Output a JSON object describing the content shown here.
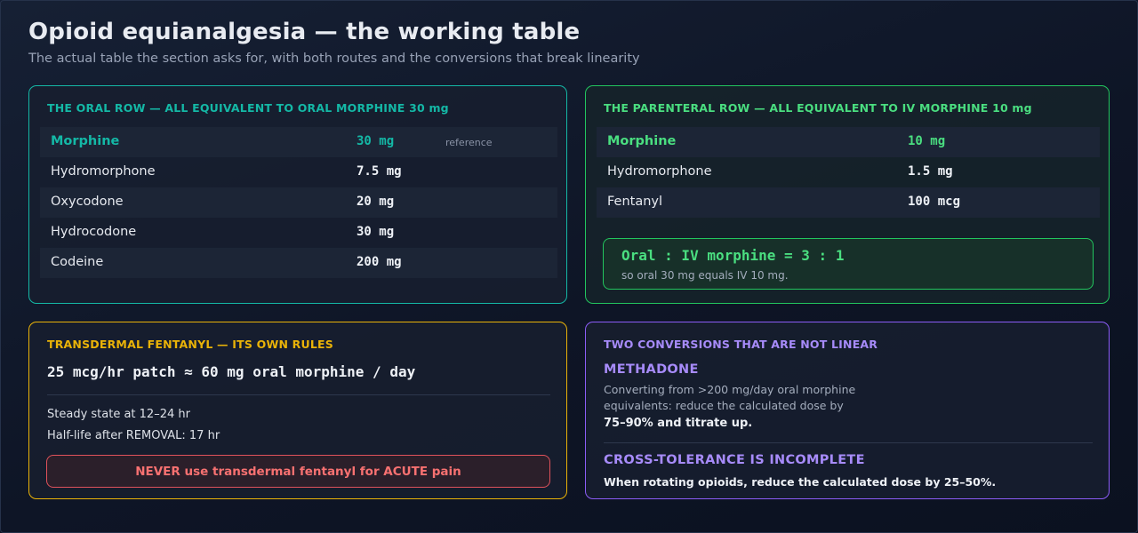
{
  "page": {
    "title": "Opioid equianalgesia — the working table",
    "subtitle": "The actual table the section asks for, with both routes and the conversions that break linearity"
  },
  "colors": {
    "oral_accent": "#14b8a6",
    "parenteral_accent": "#22c55e",
    "fentanyl_accent": "#eab308",
    "warning": "#ef4444",
    "nonlinear_accent": "#8b5cf6"
  },
  "oral": {
    "heading": "THE ORAL ROW — ALL EQUIVALENT TO ORAL MORPHINE 30 mg",
    "rows": [
      {
        "drug": "Morphine",
        "dose": "30 mg",
        "note": "reference"
      },
      {
        "drug": "Hydromorphone",
        "dose": "7.5 mg"
      },
      {
        "drug": "Oxycodone",
        "dose": "20 mg"
      },
      {
        "drug": "Hydrocodone",
        "dose": "30 mg"
      },
      {
        "drug": "Codeine",
        "dose": "200 mg"
      }
    ]
  },
  "parenteral": {
    "heading": "THE PARENTERAL ROW — ALL EQUIVALENT TO IV MORPHINE 10 mg",
    "rows": [
      {
        "drug": "Morphine",
        "dose": "10 mg"
      },
      {
        "drug": "Hydromorphone",
        "dose": "1.5 mg"
      },
      {
        "drug": "Fentanyl",
        "dose": "100 mcg"
      }
    ],
    "ratio": "Oral : IV morphine = 3 : 1",
    "ratio_note": "so oral 30 mg equals IV 10 mg."
  },
  "fentanyl": {
    "heading": "TRANSDERMAL FENTANYL — ITS OWN RULES",
    "patch": "25 mcg/hr patch ≈ 60 mg oral morphine / day",
    "steady_state": "Steady state at 12–24 hr",
    "half_life": "Half-life after REMOVAL: 17 hr",
    "warning": "NEVER use transdermal fentanyl for ACUTE pain"
  },
  "nonlinear": {
    "heading": "TWO CONVERSIONS THAT ARE NOT LINEAR",
    "methadone_title": "METHADONE",
    "methadone_line1": "Converting from >200 mg/day oral morphine",
    "methadone_line2": "equivalents: reduce the calculated dose by",
    "methadone_strong": "75–90% and titrate up.",
    "cross_title": "CROSS-TOLERANCE IS INCOMPLETE",
    "cross_text": "When rotating opioids, reduce the calculated dose by 25–50%."
  }
}
